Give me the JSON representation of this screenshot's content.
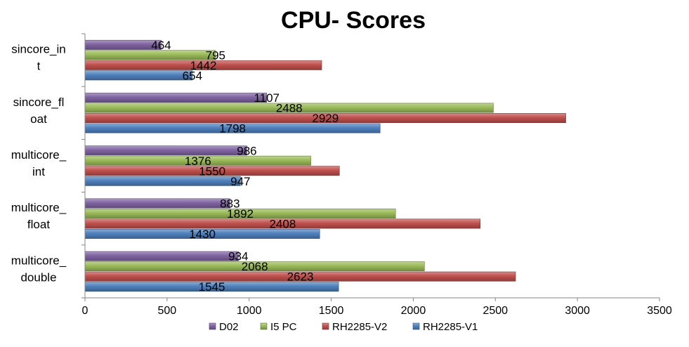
{
  "chart_data": {
    "type": "bar",
    "orientation": "horizontal",
    "title": "CPU- Scores",
    "xlabel": "",
    "ylabel": "",
    "xlim": [
      0,
      3500
    ],
    "x_ticks": [
      "0",
      "500",
      "1000",
      "1500",
      "2000",
      "2500",
      "3000",
      "3500"
    ],
    "categories": [
      {
        "lines": [
          "sincore_in",
          "t"
        ]
      },
      {
        "lines": [
          "sincore_fl",
          "oat"
        ]
      },
      {
        "lines": [
          "multicore_",
          "int"
        ]
      },
      {
        "lines": [
          "multicore_",
          "float"
        ]
      },
      {
        "lines": [
          "multicore_",
          "double"
        ]
      }
    ],
    "series": [
      {
        "name": "D02",
        "color": "#8064A2",
        "values": [
          464,
          1107,
          986,
          883,
          934
        ]
      },
      {
        "name": "I5 PC",
        "color": "#9BBB59",
        "values": [
          795,
          2488,
          1376,
          1892,
          2068
        ]
      },
      {
        "name": "RH2285-V2",
        "color": "#C0504D",
        "values": [
          1442,
          2929,
          1550,
          2408,
          2623
        ]
      },
      {
        "name": "RH2285-V1",
        "color": "#4F81BD",
        "values": [
          654,
          1798,
          947,
          1430,
          1545
        ]
      }
    ],
    "legend_placement": "bottom",
    "grid": false
  }
}
